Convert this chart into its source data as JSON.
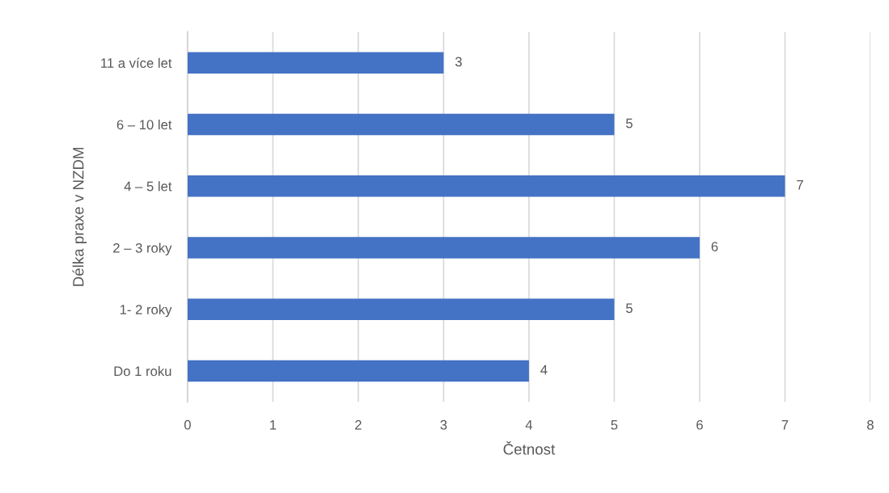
{
  "chart_data": {
    "type": "bar",
    "orientation": "horizontal",
    "categories": [
      "11 a více let",
      "6 – 10 let",
      "4 – 5 let",
      "2 – 3 roky",
      "1- 2 roky",
      "Do 1 roku"
    ],
    "values": [
      3,
      5,
      7,
      6,
      5,
      4
    ],
    "color": "#4472c4",
    "xlabel": "Četnost",
    "ylabel": "Délka praxe v NZDM",
    "xlim": [
      0,
      8
    ],
    "xticks": [
      0,
      1,
      2,
      3,
      4,
      5,
      6,
      7,
      8
    ],
    "grid": "x",
    "data_labels": true
  }
}
